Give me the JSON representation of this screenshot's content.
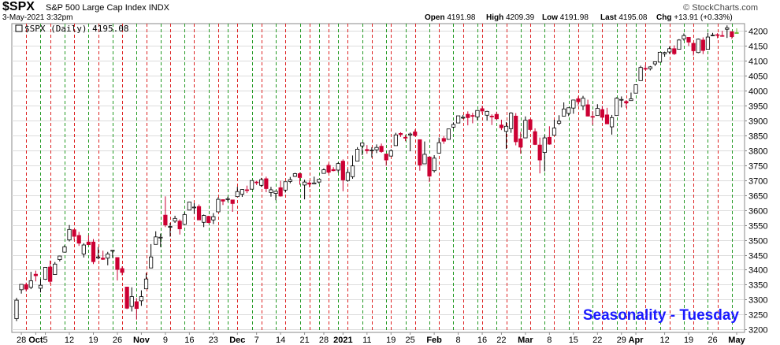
{
  "header": {
    "symbol": "$SPX",
    "description": "S&P 500 Large Cap Index",
    "exchange": "INDX",
    "datetime": "3-May-2021 3:32pm",
    "brand": "© StockCharts.com",
    "quote": {
      "open_label": "Open",
      "open": "4191.98",
      "high_label": "High",
      "high": "4209.39",
      "low_label": "Low",
      "low": "4191.98",
      "last_label": "Last",
      "last": "4195.08",
      "chg_label": "Chg",
      "chg": "+13.91 (+0.33%)"
    }
  },
  "legend_text": "$SPX (Daily) 4195.08",
  "annotation": "Seasonality - Tuesday",
  "colors": {
    "up": "#ffffff",
    "down": "#cc0033",
    "outline": "#000000",
    "red_line": "#dd2222",
    "green_line": "#229922",
    "grid": "#dcdcdc",
    "annotation": "#1a1aff",
    "last_bar": "#66bb33"
  },
  "chart_data": {
    "type": "candlestick",
    "ylim": [
      3190,
      4225
    ],
    "y_ticks": [
      3200,
      3250,
      3300,
      3350,
      3400,
      3450,
      3500,
      3550,
      3600,
      3650,
      3700,
      3750,
      3800,
      3850,
      3900,
      3950,
      4000,
      4050,
      4100,
      4150,
      4200
    ],
    "x_tick_labels": [
      "28",
      "Oct",
      "5",
      "12",
      "19",
      "26",
      "Nov",
      "9",
      "16",
      "23",
      "Dec",
      "7",
      "14",
      "21",
      "28",
      "2021",
      "11",
      "19",
      "25",
      "Feb",
      "8",
      "16",
      "22",
      "Mar",
      "8",
      "15",
      "22",
      "29",
      "Apr",
      "12",
      "19",
      "26",
      "May"
    ],
    "bold_tick_labels": [
      "Oct",
      "Nov",
      "Dec",
      "2021",
      "Feb",
      "Mar",
      "Apr",
      "May"
    ],
    "vertical_lines": {
      "red": [
        "2020-09-29",
        "2020-10-06",
        "2020-10-13",
        "2020-10-20",
        "2020-10-27",
        "2020-11-03",
        "2020-11-10",
        "2020-11-17",
        "2020-11-24",
        "2020-12-01",
        "2020-12-08",
        "2020-12-15",
        "2020-12-22",
        "2020-12-29",
        "2021-01-05",
        "2021-01-12",
        "2021-01-19",
        "2021-01-26",
        "2021-02-02",
        "2021-02-09",
        "2021-02-16",
        "2021-02-23",
        "2021-03-02",
        "2021-03-09",
        "2021-03-16",
        "2021-03-23",
        "2021-03-30",
        "2021-04-06",
        "2021-04-13",
        "2021-04-20",
        "2021-04-27"
      ],
      "green": [
        "2020-10-02",
        "2020-10-09",
        "2020-10-16",
        "2020-10-23",
        "2020-10-30",
        "2020-11-06",
        "2020-11-13",
        "2020-11-20",
        "2020-11-27",
        "2020-12-04",
        "2020-12-11",
        "2020-12-18",
        "2020-12-24",
        "2020-12-31",
        "2021-01-08",
        "2021-01-15",
        "2021-01-22",
        "2021-01-29",
        "2021-02-05",
        "2021-02-12",
        "2021-02-19",
        "2021-02-26",
        "2021-03-05",
        "2021-03-12",
        "2021-03-19",
        "2021-03-26",
        "2021-04-01",
        "2021-04-09",
        "2021-04-16",
        "2021-04-23",
        "2021-04-30"
      ]
    },
    "candles": [
      [
        "2020-09-25",
        3236,
        3306,
        3228,
        3298
      ],
      [
        "2020-09-28",
        3333,
        3342,
        3320,
        3351
      ],
      [
        "2020-09-29",
        3350,
        3357,
        3327,
        3335
      ],
      [
        "2020-09-30",
        3341,
        3393,
        3335,
        3363
      ],
      [
        "2020-10-01",
        3385,
        3397,
        3361,
        3380
      ],
      [
        "2020-10-02",
        3338,
        3369,
        3324,
        3348
      ],
      [
        "2020-10-05",
        3368,
        3409,
        3366,
        3408
      ],
      [
        "2020-10-06",
        3409,
        3431,
        3354,
        3361
      ],
      [
        "2020-10-07",
        3384,
        3426,
        3384,
        3419
      ],
      [
        "2020-10-08",
        3434,
        3447,
        3428,
        3446
      ],
      [
        "2020-10-09",
        3459,
        3482,
        3458,
        3477
      ],
      [
        "2020-10-12",
        3500,
        3550,
        3495,
        3535
      ],
      [
        "2020-10-13",
        3534,
        3534,
        3500,
        3512
      ],
      [
        "2020-10-14",
        3515,
        3527,
        3480,
        3489
      ],
      [
        "2020-10-15",
        3453,
        3489,
        3441,
        3483
      ],
      [
        "2020-10-16",
        3493,
        3516,
        3483,
        3484
      ],
      [
        "2020-10-19",
        3493,
        3503,
        3419,
        3427
      ],
      [
        "2020-10-20",
        3440,
        3476,
        3435,
        3443
      ],
      [
        "2020-10-21",
        3439,
        3464,
        3433,
        3435
      ],
      [
        "2020-10-22",
        3439,
        3460,
        3415,
        3453
      ],
      [
        "2020-10-23",
        3464,
        3466,
        3440,
        3465
      ],
      [
        "2020-10-26",
        3441,
        3441,
        3364,
        3401
      ],
      [
        "2020-10-27",
        3404,
        3411,
        3381,
        3391
      ],
      [
        "2020-10-28",
        3342,
        3342,
        3268,
        3271
      ],
      [
        "2020-10-29",
        3277,
        3341,
        3260,
        3310
      ],
      [
        "2020-10-30",
        3293,
        3305,
        3233,
        3270
      ],
      [
        "2020-11-02",
        3296,
        3331,
        3279,
        3310
      ],
      [
        "2020-11-03",
        3336,
        3389,
        3336,
        3369
      ],
      [
        "2020-11-04",
        3406,
        3486,
        3405,
        3443
      ],
      [
        "2020-11-05",
        3485,
        3529,
        3485,
        3510
      ],
      [
        "2020-11-06",
        3508,
        3521,
        3476,
        3509
      ],
      [
        "2020-11-09",
        3583,
        3646,
        3543,
        3550
      ],
      [
        "2020-11-10",
        3543,
        3557,
        3511,
        3545
      ],
      [
        "2020-11-11",
        3563,
        3581,
        3557,
        3572
      ],
      [
        "2020-11-12",
        3563,
        3569,
        3518,
        3537
      ],
      [
        "2020-11-13",
        3552,
        3593,
        3552,
        3585
      ],
      [
        "2020-11-16",
        3600,
        3628,
        3601,
        3627
      ],
      [
        "2020-11-17",
        3610,
        3623,
        3588,
        3610
      ],
      [
        "2020-11-18",
        3612,
        3619,
        3567,
        3567
      ],
      [
        "2020-11-19",
        3559,
        3585,
        3543,
        3582
      ],
      [
        "2020-11-20",
        3579,
        3581,
        3556,
        3558
      ],
      [
        "2020-11-23",
        3567,
        3590,
        3553,
        3578
      ],
      [
        "2020-11-24",
        3594,
        3643,
        3594,
        3636
      ],
      [
        "2020-11-25",
        3635,
        3635,
        3617,
        3630
      ],
      [
        "2020-11-27",
        3638,
        3645,
        3629,
        3638
      ],
      [
        "2020-11-30",
        3634,
        3634,
        3594,
        3622
      ],
      [
        "2020-12-01",
        3645,
        3678,
        3645,
        3662
      ],
      [
        "2020-12-02",
        3653,
        3670,
        3644,
        3669
      ],
      [
        "2020-12-03",
        3668,
        3682,
        3657,
        3666
      ],
      [
        "2020-12-04",
        3670,
        3699,
        3670,
        3699
      ],
      [
        "2020-12-07",
        3694,
        3698,
        3684,
        3692
      ],
      [
        "2020-12-08",
        3683,
        3708,
        3678,
        3702
      ],
      [
        "2020-12-09",
        3705,
        3712,
        3660,
        3672
      ],
      [
        "2020-12-10",
        3659,
        3678,
        3645,
        3668
      ],
      [
        "2020-12-11",
        3656,
        3665,
        3633,
        3663
      ],
      [
        "2020-12-14",
        3675,
        3698,
        3645,
        3647
      ],
      [
        "2020-12-15",
        3667,
        3695,
        3659,
        3695
      ],
      [
        "2020-12-16",
        3696,
        3711,
        3690,
        3702
      ],
      [
        "2020-12-17",
        3713,
        3725,
        3711,
        3722
      ],
      [
        "2020-12-18",
        3722,
        3726,
        3685,
        3709
      ],
      [
        "2020-12-21",
        3684,
        3702,
        3636,
        3694
      ],
      [
        "2020-12-22",
        3691,
        3698,
        3676,
        3687
      ],
      [
        "2020-12-23",
        3688,
        3712,
        3688,
        3691
      ],
      [
        "2020-12-24",
        3694,
        3703,
        3689,
        3703
      ],
      [
        "2020-12-28",
        3723,
        3740,
        3723,
        3735
      ],
      [
        "2020-12-29",
        3750,
        3756,
        3723,
        3727
      ],
      [
        "2020-12-30",
        3736,
        3744,
        3730,
        3732
      ],
      [
        "2020-12-31",
        3734,
        3760,
        3726,
        3756
      ],
      [
        "2021-01-04",
        3764,
        3770,
        3663,
        3701
      ],
      [
        "2021-01-05",
        3699,
        3738,
        3695,
        3726
      ],
      [
        "2021-01-06",
        3712,
        3783,
        3705,
        3748
      ],
      [
        "2021-01-07",
        3764,
        3811,
        3764,
        3804
      ],
      [
        "2021-01-08",
        3815,
        3826,
        3784,
        3825
      ],
      [
        "2021-01-11",
        3803,
        3818,
        3789,
        3799
      ],
      [
        "2021-01-12",
        3801,
        3811,
        3776,
        3801
      ],
      [
        "2021-01-13",
        3802,
        3820,
        3791,
        3810
      ],
      [
        "2021-01-14",
        3814,
        3823,
        3792,
        3796
      ],
      [
        "2021-01-15",
        3788,
        3788,
        3749,
        3768
      ],
      [
        "2021-01-19",
        3781,
        3804,
        3780,
        3799
      ],
      [
        "2021-01-20",
        3816,
        3859,
        3816,
        3852
      ],
      [
        "2021-01-21",
        3857,
        3861,
        3845,
        3853
      ],
      [
        "2021-01-22",
        3844,
        3852,
        3831,
        3841
      ],
      [
        "2021-01-25",
        3852,
        3860,
        3797,
        3855
      ],
      [
        "2021-01-26",
        3862,
        3870,
        3847,
        3850
      ],
      [
        "2021-01-27",
        3836,
        3836,
        3732,
        3751
      ],
      [
        "2021-01-28",
        3755,
        3830,
        3755,
        3787
      ],
      [
        "2021-01-29",
        3778,
        3778,
        3694,
        3714
      ],
      [
        "2021-02-01",
        3732,
        3784,
        3726,
        3774
      ],
      [
        "2021-02-02",
        3791,
        3843,
        3791,
        3826
      ],
      [
        "2021-02-03",
        3840,
        3848,
        3822,
        3831
      ],
      [
        "2021-02-04",
        3837,
        3872,
        3836,
        3872
      ],
      [
        "2021-02-05",
        3878,
        3894,
        3874,
        3887
      ],
      [
        "2021-02-08",
        3892,
        3916,
        3892,
        3916
      ],
      [
        "2021-02-09",
        3910,
        3919,
        3906,
        3911
      ],
      [
        "2021-02-10",
        3921,
        3931,
        3884,
        3910
      ],
      [
        "2021-02-11",
        3917,
        3926,
        3891,
        3916
      ],
      [
        "2021-02-12",
        3912,
        3935,
        3901,
        3934
      ],
      [
        "2021-02-16",
        3940,
        3950,
        3923,
        3932
      ],
      [
        "2021-02-17",
        3918,
        3933,
        3900,
        3931
      ],
      [
        "2021-02-18",
        3915,
        3921,
        3885,
        3913
      ],
      [
        "2021-02-19",
        3921,
        3930,
        3903,
        3906
      ],
      [
        "2021-02-22",
        3885,
        3903,
        3868,
        3876
      ],
      [
        "2021-02-23",
        3864,
        3895,
        3805,
        3881
      ],
      [
        "2021-02-24",
        3873,
        3928,
        3859,
        3925
      ],
      [
        "2021-02-25",
        3915,
        3925,
        3817,
        3829
      ],
      [
        "2021-02-26",
        3839,
        3862,
        3789,
        3811
      ],
      [
        "2021-03-01",
        3842,
        3914,
        3842,
        3901
      ],
      [
        "2021-03-02",
        3903,
        3906,
        3868,
        3870
      ],
      [
        "2021-03-03",
        3863,
        3874,
        3818,
        3820
      ],
      [
        "2021-03-04",
        3818,
        3843,
        3723,
        3768
      ],
      [
        "2021-03-05",
        3793,
        3851,
        3730,
        3842
      ],
      [
        "2021-03-08",
        3844,
        3881,
        3819,
        3821
      ],
      [
        "2021-03-09",
        3851,
        3903,
        3851,
        3875
      ],
      [
        "2021-03-10",
        3891,
        3918,
        3885,
        3898
      ],
      [
        "2021-03-11",
        3915,
        3961,
        3915,
        3939
      ],
      [
        "2021-03-12",
        3924,
        3944,
        3915,
        3943
      ],
      [
        "2021-03-15",
        3942,
        3970,
        3923,
        3969
      ],
      [
        "2021-03-16",
        3973,
        3981,
        3950,
        3963
      ],
      [
        "2021-03-17",
        3949,
        3983,
        3935,
        3975
      ],
      [
        "2021-03-18",
        3953,
        3970,
        3914,
        3915
      ],
      [
        "2021-03-19",
        3914,
        3932,
        3885,
        3913
      ],
      [
        "2021-03-22",
        3917,
        3955,
        3918,
        3941
      ],
      [
        "2021-03-23",
        3937,
        3949,
        3901,
        3911
      ],
      [
        "2021-03-24",
        3919,
        3943,
        3889,
        3889
      ],
      [
        "2021-03-25",
        3879,
        3919,
        3853,
        3910
      ],
      [
        "2021-03-26",
        3917,
        3978,
        3917,
        3975
      ],
      [
        "2021-03-29",
        3969,
        3981,
        3944,
        3971
      ],
      [
        "2021-03-30",
        3964,
        3969,
        3943,
        3959
      ],
      [
        "2021-03-31",
        3967,
        3994,
        3967,
        3973
      ],
      [
        "2021-04-01",
        3992,
        4018,
        3992,
        4020
      ],
      [
        "2021-04-05",
        4034,
        4084,
        4034,
        4078
      ],
      [
        "2021-04-06",
        4075,
        4086,
        4069,
        4074
      ],
      [
        "2021-04-07",
        4074,
        4083,
        4068,
        4080
      ],
      [
        "2021-04-08",
        4090,
        4098,
        4083,
        4097
      ],
      [
        "2021-04-09",
        4096,
        4129,
        4095,
        4129
      ],
      [
        "2021-04-12",
        4124,
        4131,
        4114,
        4128
      ],
      [
        "2021-04-13",
        4130,
        4148,
        4124,
        4141
      ],
      [
        "2021-04-14",
        4141,
        4152,
        4120,
        4124
      ],
      [
        "2021-04-15",
        4139,
        4173,
        4139,
        4170
      ],
      [
        "2021-04-16",
        4174,
        4192,
        4168,
        4185
      ],
      [
        "2021-04-19",
        4179,
        4180,
        4150,
        4163
      ],
      [
        "2021-04-20",
        4159,
        4160,
        4118,
        4134
      ],
      [
        "2021-04-21",
        4128,
        4175,
        4126,
        4173
      ],
      [
        "2021-04-22",
        4170,
        4179,
        4123,
        4135
      ],
      [
        "2021-04-23",
        4139,
        4194,
        4138,
        4180
      ],
      [
        "2021-04-26",
        4185,
        4194,
        4183,
        4187
      ],
      [
        "2021-04-27",
        4188,
        4193,
        4176,
        4186
      ],
      [
        "2021-04-28",
        4185,
        4201,
        4181,
        4183
      ],
      [
        "2021-04-29",
        4206,
        4219,
        4177,
        4211
      ],
      [
        "2021-04-30",
        4198,
        4198,
        4174,
        4181
      ],
      [
        "2021-05-03",
        4192,
        4209,
        4192,
        4195
      ]
    ]
  }
}
